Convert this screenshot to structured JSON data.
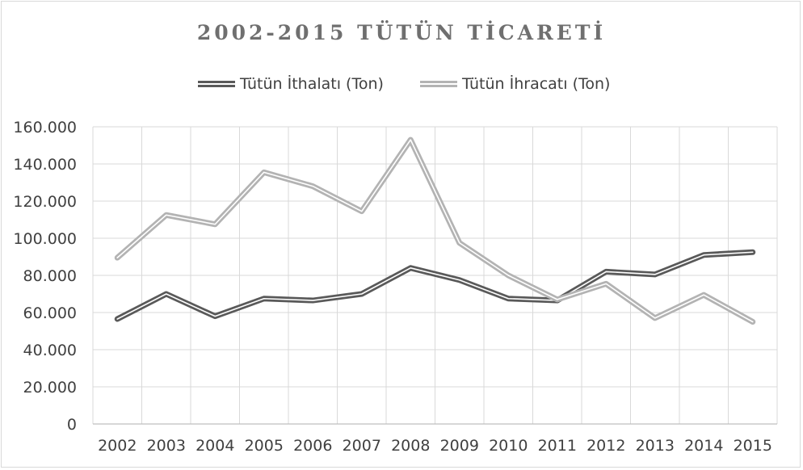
{
  "chart_data": {
    "type": "line",
    "title": "2002-2015 TÜTÜN TİCARETİ",
    "x": [
      "2002",
      "2003",
      "2004",
      "2005",
      "2006",
      "2007",
      "2008",
      "2009",
      "2010",
      "2011",
      "2012",
      "2013",
      "2014",
      "2015"
    ],
    "series": [
      {
        "name": "Tütün İthalatı (Ton)",
        "color": "#595959",
        "values": [
          56500,
          70000,
          58000,
          67500,
          66500,
          70000,
          84000,
          77500,
          67500,
          66500,
          82000,
          80500,
          91000,
          92500
        ]
      },
      {
        "name": "Tütün İhracatı (Ton)",
        "color": "#b3b3b3",
        "values": [
          89500,
          112500,
          107500,
          135500,
          128000,
          114500,
          153000,
          97500,
          80000,
          67000,
          75500,
          57000,
          69500,
          55000
        ]
      }
    ],
    "yticks": [
      "0",
      "20.000",
      "40.000",
      "60.000",
      "80.000",
      "100.000",
      "120.000",
      "140.000",
      "160.000"
    ],
    "ylim": [
      0,
      160000
    ],
    "grid": true,
    "legend": "top"
  }
}
